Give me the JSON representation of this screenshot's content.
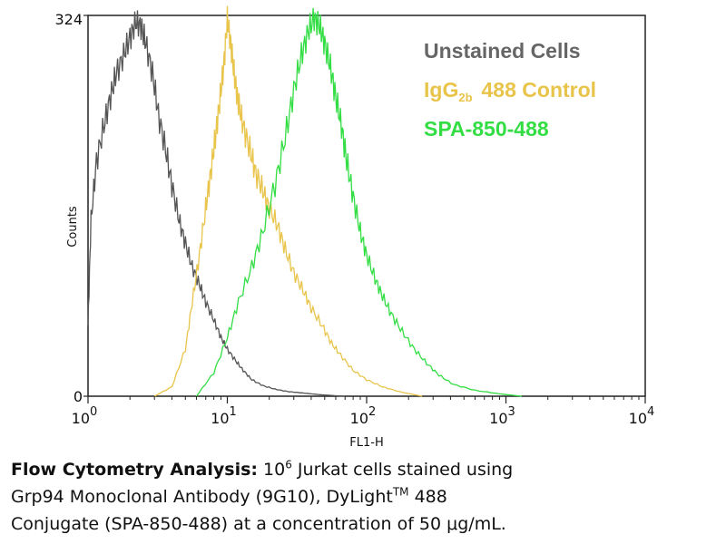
{
  "chart_data": {
    "type": "line",
    "title": "",
    "xlabel": "FL1-H",
    "ylabel": "Counts",
    "xscale": "log",
    "xlim": [
      1,
      10000
    ],
    "ylim": [
      0,
      324
    ],
    "x_ticks": [
      {
        "base": "10",
        "exp": "0"
      },
      {
        "base": "10",
        "exp": "1"
      },
      {
        "base": "10",
        "exp": "2"
      },
      {
        "base": "10",
        "exp": "3"
      },
      {
        "base": "10",
        "exp": "4"
      }
    ],
    "y_ticks": [
      "0",
      "324"
    ],
    "legend_position": "top-right",
    "series": [
      {
        "name": "Unstained Cells",
        "color": "#555555",
        "x": [
          1.0,
          1.05,
          1.15,
          1.3,
          1.45,
          1.6,
          1.8,
          2.0,
          2.2,
          2.4,
          2.6,
          2.9,
          3.2,
          3.6,
          4.0,
          4.5,
          5.0,
          5.6,
          6.3,
          7.0,
          8.0,
          9.0,
          10.0,
          11.5,
          13.0,
          15.0,
          18.0,
          22.0,
          27.0,
          33.0,
          40.0,
          50.0,
          70.0
        ],
        "values": [
          60,
          150,
          200,
          230,
          255,
          275,
          290,
          305,
          318,
          315,
          300,
          275,
          240,
          210,
          180,
          150,
          130,
          110,
          95,
          80,
          65,
          50,
          40,
          30,
          22,
          14,
          9,
          6,
          4,
          3,
          2,
          1,
          0
        ]
      },
      {
        "name": "IgG2b 488 Control",
        "color": "#e8c44a",
        "x": [
          3.0,
          4.0,
          5.0,
          5.6,
          6.3,
          7.0,
          7.6,
          8.2,
          8.8,
          9.4,
          10.0,
          10.6,
          11.3,
          12.0,
          13.0,
          14.5,
          16.0,
          18.0,
          20.0,
          23.0,
          26.0,
          30.0,
          35.0,
          40.0,
          48.0,
          56.0,
          65.0,
          80.0,
          100.0,
          130.0,
          170.0,
          250.0
        ],
        "values": [
          0,
          8,
          40,
          80,
          120,
          160,
          190,
          220,
          250,
          280,
          320,
          300,
          270,
          250,
          230,
          210,
          190,
          175,
          160,
          145,
          125,
          105,
          90,
          75,
          60,
          45,
          35,
          22,
          14,
          8,
          4,
          0
        ]
      },
      {
        "name": "SPA-850-488",
        "color": "#33dd44",
        "x": [
          6.0,
          8.0,
          10.0,
          12.0,
          15.0,
          18.0,
          22.0,
          26.0,
          30.0,
          34.0,
          38.0,
          42.0,
          46.0,
          50.0,
          55.0,
          60.0,
          66.0,
          72.0,
          80.0,
          90.0,
          100.0,
          115.0,
          130.0,
          150.0,
          180.0,
          220.0,
          270.0,
          330.0,
          420.0,
          600.0,
          900.0,
          1300.0
        ],
        "values": [
          0,
          20,
          50,
          80,
          110,
          140,
          180,
          220,
          260,
          290,
          310,
          322,
          315,
          300,
          280,
          255,
          230,
          200,
          170,
          140,
          120,
          100,
          85,
          70,
          55,
          40,
          28,
          18,
          10,
          5,
          2,
          0
        ]
      }
    ]
  },
  "legend": {
    "unstained": "Unstained Cells",
    "igg_prefix": "IgG",
    "igg_subscript": "2b",
    "igg_suffix": "488 Control",
    "spa": "SPA-850-488"
  },
  "caption": {
    "bold_part": "Flow Cytometry Analysis:",
    "exp_base": "10",
    "exp_value": "6",
    "line1_rest": "Jurkat cells stained using",
    "line2_a": "Grp94 Monoclonal Antibody (9G10), DyLight",
    "line2_tm": "TM",
    "line2_b": "488",
    "line3": "Conjugate (SPA-850-488) at a concentration of 50 μg/mL."
  }
}
